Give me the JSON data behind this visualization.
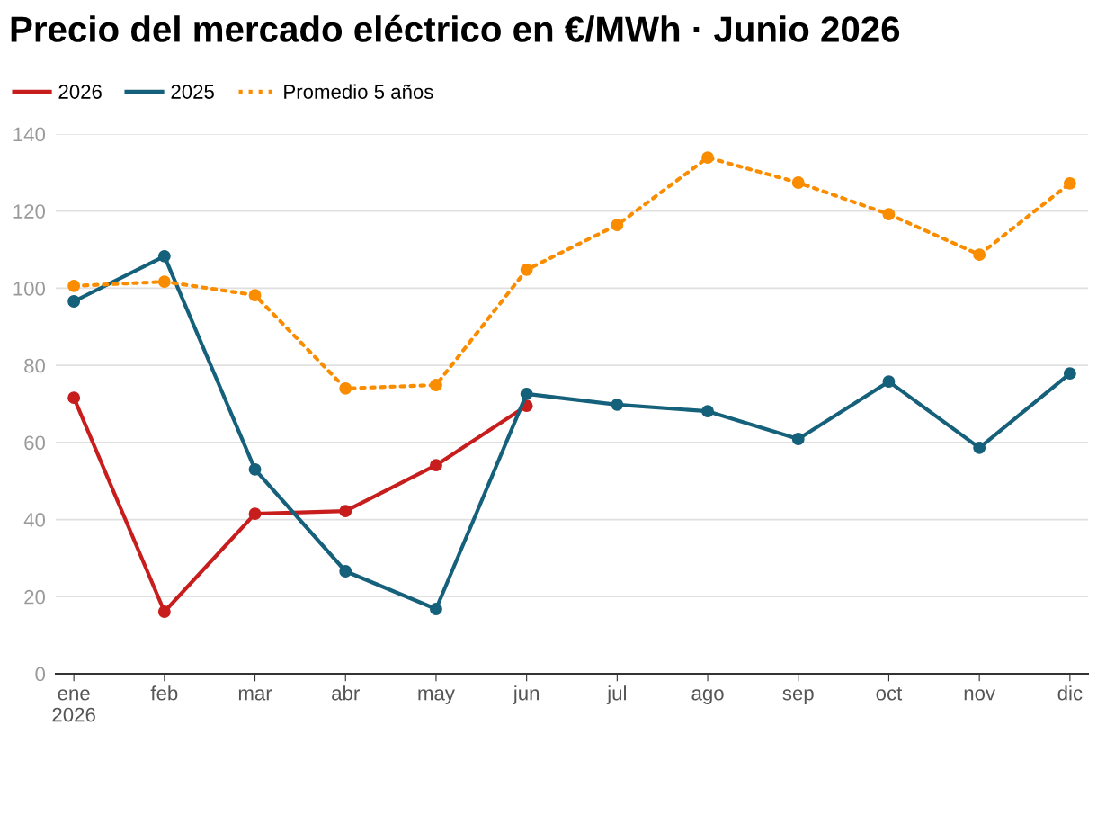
{
  "chart_data": {
    "type": "line",
    "title": "Precio del mercado eléctrico en €/MWh · Junio 2026",
    "categories": [
      "ene\n2026",
      "feb",
      "mar",
      "abr",
      "may",
      "jun",
      "jul",
      "ago",
      "sep",
      "oct",
      "nov",
      "dic"
    ],
    "series": [
      {
        "name": "2026",
        "color": "#c71e1d",
        "line_style": "solid",
        "values": [
          71.6,
          16.1,
          41.5,
          42.2,
          54.1,
          69.5,
          null,
          null,
          null,
          null,
          null,
          null
        ]
      },
      {
        "name": "2025",
        "color": "#15607a",
        "line_style": "solid",
        "values": [
          96.6,
          108.3,
          53.0,
          26.6,
          16.8,
          72.6,
          69.8,
          68.1,
          60.9,
          75.8,
          58.6,
          77.9
        ]
      },
      {
        "name": "Promedio 5 años",
        "color": "#fa8c00",
        "line_style": "dotted",
        "values": [
          100.6,
          101.7,
          98.2,
          74.0,
          74.9,
          104.8,
          116.4,
          133.9,
          127.4,
          119.2,
          108.7,
          127.2
        ]
      }
    ],
    "ylim": [
      0,
      140
    ],
    "yticks": [
      0,
      20,
      40,
      60,
      80,
      100,
      120,
      140
    ],
    "grid": "y",
    "legend": "top left",
    "marker": "circle"
  }
}
